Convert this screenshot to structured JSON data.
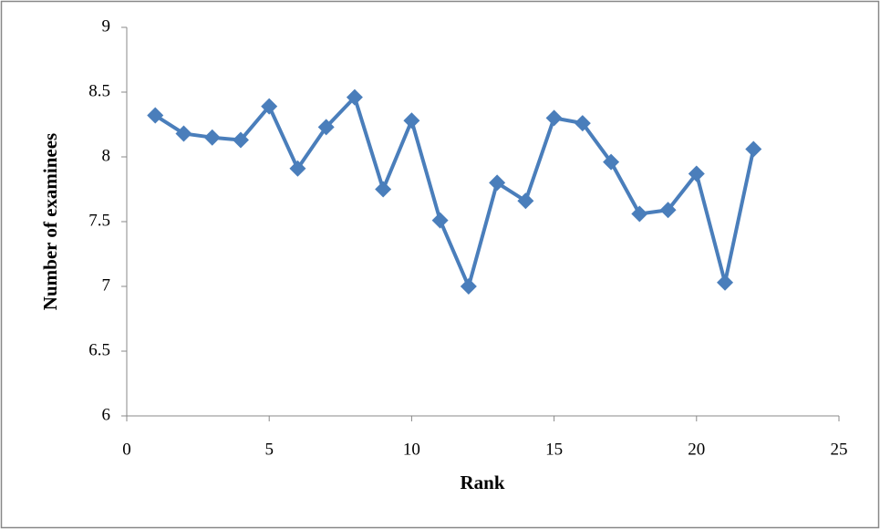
{
  "chart_data": {
    "type": "line",
    "xlabel": "Rank",
    "ylabel": "Number of examinees",
    "x": [
      1,
      2,
      3,
      4,
      5,
      6,
      7,
      8,
      9,
      10,
      11,
      12,
      13,
      14,
      15,
      16,
      17,
      18,
      19,
      20,
      21,
      22
    ],
    "series": [
      {
        "name": "Number of examinees",
        "color": "#4a7ebb",
        "values": [
          8.32,
          8.18,
          8.15,
          8.13,
          8.39,
          7.91,
          8.23,
          8.46,
          7.75,
          8.28,
          7.51,
          7.0,
          7.8,
          7.66,
          8.3,
          8.26,
          7.96,
          7.56,
          7.59,
          7.87,
          7.03,
          8.06
        ]
      }
    ],
    "xlim": [
      0,
      25
    ],
    "xticks": [
      0,
      5,
      10,
      15,
      20,
      25
    ],
    "ylim": [
      6,
      9
    ],
    "yticks": [
      6,
      6.5,
      7,
      7.5,
      8,
      8.5,
      9
    ],
    "grid": false,
    "marker": "diamond"
  }
}
